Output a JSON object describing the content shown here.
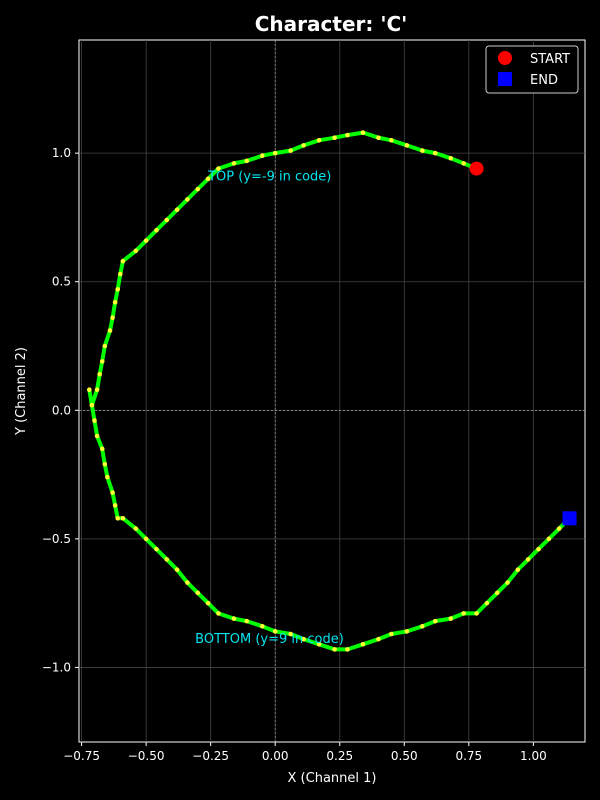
{
  "chart_data": {
    "type": "line",
    "title": "Character: 'C'",
    "xlabel": "X (Channel 1)",
    "ylabel": "Y (Channel 2)",
    "xlim": [
      -0.76,
      1.2
    ],
    "ylim": [
      -1.29,
      1.44
    ],
    "x_ticks": [
      -0.75,
      -0.5,
      -0.25,
      0.0,
      0.25,
      0.5,
      0.75,
      1.0
    ],
    "x_tick_labels": [
      "−0.75",
      "−0.50",
      "−0.25",
      "0.00",
      "0.25",
      "0.50",
      "0.75",
      "1.00"
    ],
    "y_ticks": [
      -1.0,
      -0.5,
      0.0,
      0.5,
      1.0
    ],
    "y_tick_labels": [
      "−1.0",
      "−0.5",
      "0.0",
      "0.5",
      "1.0"
    ],
    "grid": true,
    "legend_position": "top-right",
    "colors": {
      "background": "#000000",
      "path": "#00ff00",
      "points": "#ffff33",
      "start": "#ff0000",
      "end": "#0000ff",
      "annotation": "#00e5ee",
      "grid": "#444444"
    },
    "series": [
      {
        "x": [
          0.78,
          0.73,
          0.68,
          0.62,
          0.57,
          0.51,
          0.45,
          0.4,
          0.34,
          0.28,
          0.23,
          0.17,
          0.11,
          0.06,
          0.0,
          -0.05,
          -0.11,
          -0.16,
          -0.22,
          -0.26,
          -0.3,
          -0.34,
          -0.38,
          -0.42,
          -0.46,
          -0.5,
          -0.54,
          -0.59,
          -0.6,
          -0.61,
          -0.62,
          -0.63,
          -0.64,
          -0.66,
          -0.67,
          -0.68,
          -0.69,
          -0.71,
          -0.72,
          -0.71,
          -0.7,
          -0.69,
          -0.67,
          -0.66,
          -0.65,
          -0.63,
          -0.62,
          -0.61,
          -0.59,
          -0.54,
          -0.5,
          -0.46,
          -0.42,
          -0.38,
          -0.34,
          -0.3,
          -0.26,
          -0.22,
          -0.16,
          -0.11,
          -0.05,
          0.0,
          0.06,
          0.11,
          0.17,
          0.23,
          0.28,
          0.34,
          0.4,
          0.45,
          0.51,
          0.57,
          0.62,
          0.68,
          0.73,
          0.78,
          0.82,
          0.86,
          0.9,
          0.94,
          0.98,
          1.02,
          1.06,
          1.1,
          1.14
        ],
        "y": [
          0.94,
          0.96,
          0.98,
          1.0,
          1.01,
          1.03,
          1.05,
          1.06,
          1.08,
          1.07,
          1.06,
          1.05,
          1.03,
          1.01,
          1.0,
          0.99,
          0.97,
          0.96,
          0.94,
          0.9,
          0.86,
          0.82,
          0.78,
          0.74,
          0.7,
          0.66,
          0.62,
          0.58,
          0.53,
          0.47,
          0.42,
          0.36,
          0.31,
          0.25,
          0.19,
          0.14,
          0.08,
          0.02,
          0.08,
          0.02,
          -0.04,
          -0.1,
          -0.15,
          -0.21,
          -0.26,
          -0.32,
          -0.37,
          -0.42,
          -0.42,
          -0.46,
          -0.5,
          -0.54,
          -0.58,
          -0.62,
          -0.67,
          -0.71,
          -0.75,
          -0.79,
          -0.81,
          -0.82,
          -0.84,
          -0.86,
          -0.87,
          -0.89,
          -0.91,
          -0.93,
          -0.93,
          -0.91,
          -0.89,
          -0.87,
          -0.86,
          -0.84,
          -0.82,
          -0.81,
          -0.79,
          -0.79,
          -0.75,
          -0.71,
          -0.67,
          -0.62,
          -0.58,
          -0.54,
          -0.5,
          -0.46,
          -0.42
        ]
      }
    ],
    "markers": {
      "start": {
        "label": "START",
        "x": 0.78,
        "y": 0.94
      },
      "end": {
        "label": "END",
        "x": 1.14,
        "y": -0.42
      }
    },
    "annotations": [
      {
        "text": "TOP (y=-9 in code)",
        "x": -0.26,
        "y": 0.91
      },
      {
        "text": "BOTTOM (y=9 in code)",
        "x": -0.31,
        "y": -0.89
      }
    ]
  }
}
